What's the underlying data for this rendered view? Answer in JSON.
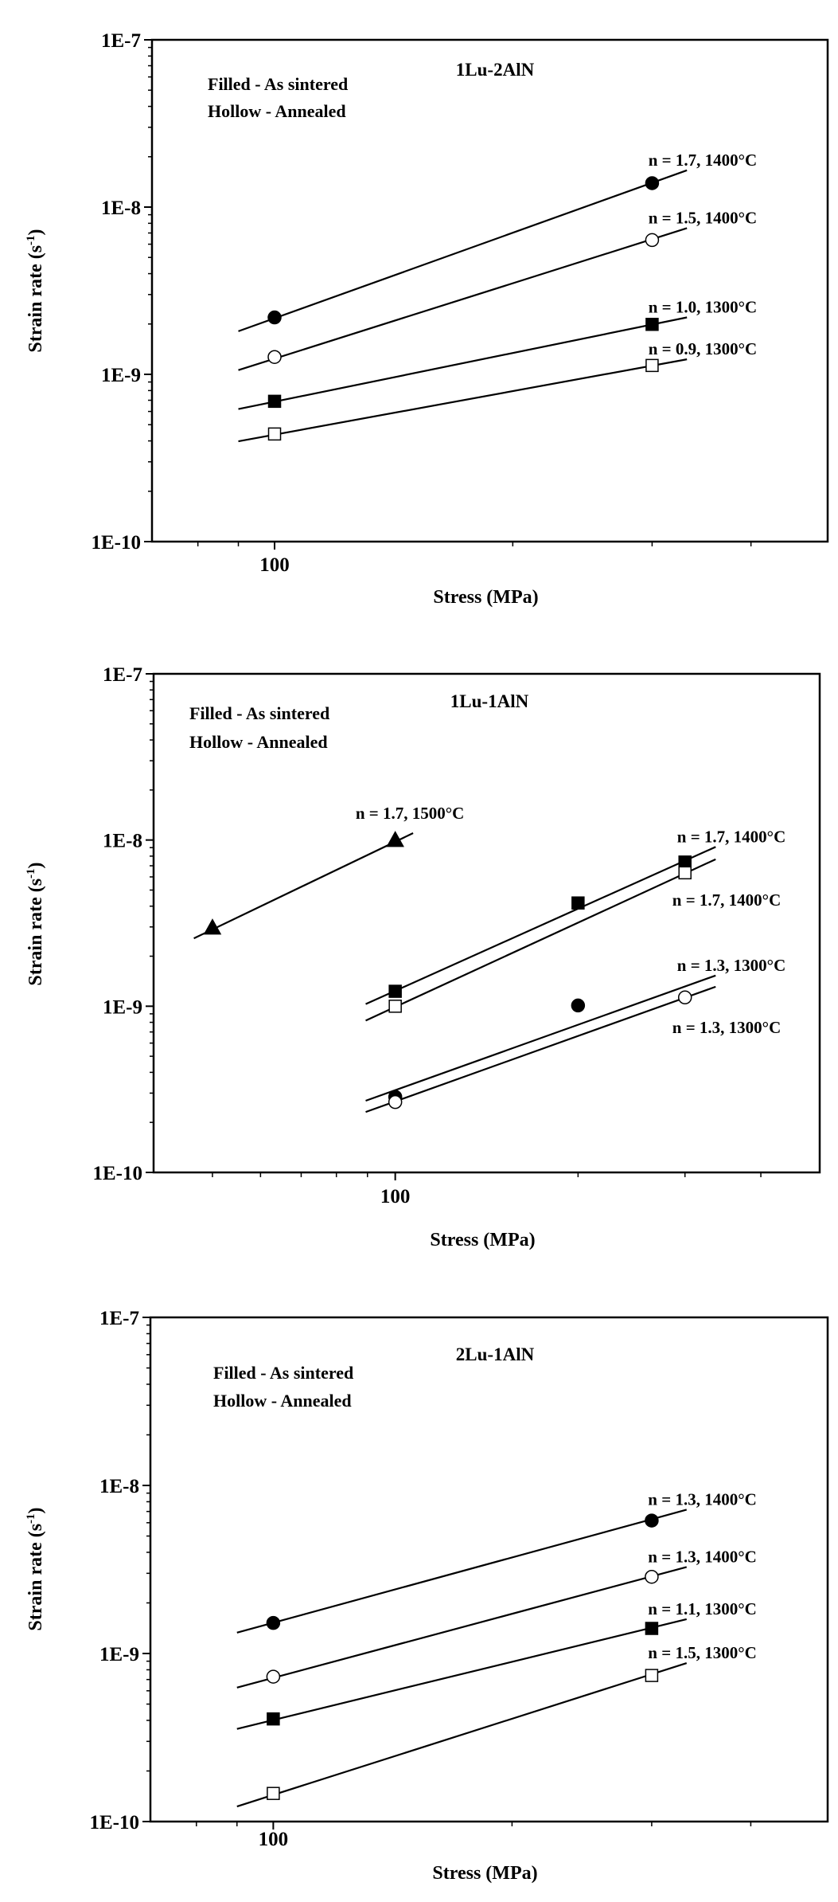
{
  "chart_data": [
    {
      "type": "scatter",
      "title": "1Lu-2AlN",
      "legend_note": [
        "Filled - As sintered",
        "Hollow - Annealed"
      ],
      "xlabel": "Stress (MPa)",
      "ylabel": "Strain rate (s",
      "ylabel_sup": "-1",
      "ylabel_end": ")",
      "xscale": "log",
      "yscale": "log",
      "xlim": [
        70,
        500
      ],
      "ylim": [
        1e-10,
        1e-07
      ],
      "xticks": [
        {
          "v": 100,
          "label": "100"
        }
      ],
      "xminor": [
        80,
        90,
        200,
        300,
        400
      ],
      "yticks": [
        {
          "v": 1e-07,
          "label": "1E-7"
        },
        {
          "v": 1e-08,
          "label": "1E-8"
        },
        {
          "v": 1e-09,
          "label": "1E-9"
        },
        {
          "v": 1e-10,
          "label": "1E-10"
        }
      ],
      "grid": false,
      "series": [
        {
          "marker": "filled-circle",
          "points": [
            [
              100,
              2.19e-09
            ],
            [
              300,
              1.39e-08
            ]
          ],
          "fit": [
            [
              90,
              1.81e-09
            ],
            [
              332,
              1.66e-08
            ]
          ],
          "label": "n = 1.7, 1400°C",
          "label_side": "above"
        },
        {
          "marker": "hollow-circle",
          "points": [
            [
              100,
              1.27e-09
            ],
            [
              300,
              6.35e-09
            ]
          ],
          "fit": [
            [
              90,
              1.06e-09
            ],
            [
              332,
              7.48e-09
            ]
          ],
          "label": "n = 1.5, 1400°C",
          "label_side": "above"
        },
        {
          "marker": "filled-square",
          "points": [
            [
              100,
              6.9e-10
            ],
            [
              300,
              1.99e-09
            ]
          ],
          "fit": [
            [
              90,
              6.2e-10
            ],
            [
              332,
              2.19e-09
            ]
          ],
          "label": "n = 1.0, 1300°C",
          "label_side": "above"
        },
        {
          "marker": "hollow-square",
          "points": [
            [
              100,
              4.4e-10
            ],
            [
              300,
              1.13e-09
            ]
          ],
          "fit": [
            [
              90,
              3.98e-10
            ],
            [
              332,
              1.23e-09
            ]
          ],
          "label": "n = 0.9, 1300°C",
          "label_side": "above"
        }
      ]
    },
    {
      "type": "scatter",
      "title": "1Lu-1AlN",
      "legend_note": [
        "Filled - As sintered",
        "Hollow - Annealed"
      ],
      "xlabel": "Stress (MPa)",
      "ylabel": "Strain rate (s",
      "ylabel_sup": "-1",
      "ylabel_end": ")",
      "xscale": "log",
      "yscale": "log",
      "xlim": [
        40,
        500
      ],
      "ylim": [
        1e-10,
        1e-07
      ],
      "xticks": [
        {
          "v": 100,
          "label": "100"
        }
      ],
      "xminor": [
        50,
        60,
        70,
        80,
        90,
        200,
        300,
        400
      ],
      "yticks": [
        {
          "v": 1e-07,
          "label": "1E-7"
        },
        {
          "v": 1e-08,
          "label": "1E-8"
        },
        {
          "v": 1e-09,
          "label": "1E-9"
        },
        {
          "v": 1e-10,
          "label": "1E-10"
        }
      ],
      "grid": false,
      "series": [
        {
          "marker": "filled-triangle",
          "points": [
            [
              50,
              2.97e-09
            ],
            [
              100,
              1e-08
            ]
          ],
          "fit": [
            [
              46.6,
              2.56e-09
            ],
            [
              107,
              1.1e-08
            ]
          ],
          "label": "n = 1.7, 1500°C",
          "label_side": "above-center"
        },
        {
          "marker": "filled-square",
          "points": [
            [
              100,
              1.23e-09
            ],
            [
              200,
              4.18e-09
            ],
            [
              300,
              7.37e-09
            ]
          ],
          "fit": [
            [
              89.4,
              1.03e-09
            ],
            [
              337,
              9.09e-09
            ]
          ],
          "label": "n = 1.7, 1400°C",
          "label_side": "above"
        },
        {
          "marker": "hollow-square",
          "points": [
            [
              100,
              1e-09
            ],
            [
              300,
              6.35e-09
            ]
          ],
          "fit": [
            [
              89.4,
              8.2e-10
            ],
            [
              337,
              7.66e-09
            ]
          ],
          "label": "n = 1.7, 1400°C",
          "label_side": "below"
        },
        {
          "marker": "filled-circle",
          "points": [
            [
              100,
              2.85e-10
            ],
            [
              200,
              1.01e-09
            ]
          ],
          "fit": [
            [
              89.4,
              2.7e-10
            ],
            [
              337,
              1.53e-09
            ]
          ],
          "label": "n = 1.3, 1300°C",
          "label_side": "above"
        },
        {
          "marker": "hollow-circle",
          "points": [
            [
              100,
              2.65e-10
            ],
            [
              300,
              1.13e-09
            ]
          ],
          "fit": [
            [
              89.4,
              2.31e-10
            ],
            [
              337,
              1.31e-09
            ]
          ],
          "label": "n = 1.3, 1300°C",
          "label_side": "below"
        }
      ]
    },
    {
      "type": "scatter",
      "title": "2Lu-1AlN",
      "legend_note": [
        "Filled - As sintered",
        "Hollow - Annealed"
      ],
      "xlabel": "Stress (MPa)",
      "ylabel": "Strain rate (s",
      "ylabel_sup": "-1",
      "ylabel_end": ")",
      "xscale": "log",
      "yscale": "log",
      "xlim": [
        70,
        500
      ],
      "ylim": [
        1e-10,
        1e-07
      ],
      "xticks": [
        {
          "v": 100,
          "label": "100"
        }
      ],
      "xminor": [
        80,
        90,
        200,
        300,
        400
      ],
      "yticks": [
        {
          "v": 1e-07,
          "label": "1E-7"
        },
        {
          "v": 1e-08,
          "label": "1E-8"
        },
        {
          "v": 1e-09,
          "label": "1E-9"
        },
        {
          "v": 1e-10,
          "label": "1E-10"
        }
      ],
      "grid": false,
      "series": [
        {
          "marker": "filled-circle",
          "points": [
            [
              100,
              1.52e-09
            ],
            [
              300,
              6.18e-09
            ]
          ],
          "fit": [
            [
              90,
              1.33e-09
            ],
            [
              332,
              7.17e-09
            ]
          ],
          "label": "n = 1.3, 1400°C",
          "label_side": "above"
        },
        {
          "marker": "hollow-circle",
          "points": [
            [
              100,
              7.28e-10
            ],
            [
              300,
              2.86e-09
            ]
          ],
          "fit": [
            [
              90,
              6.27e-10
            ],
            [
              332,
              3.27e-09
            ]
          ],
          "label": "n = 1.3, 1400°C",
          "label_side": "above"
        },
        {
          "marker": "filled-square",
          "points": [
            [
              100,
              4.08e-10
            ],
            [
              300,
              1.41e-09
            ]
          ],
          "fit": [
            [
              90,
              3.56e-10
            ],
            [
              332,
              1.6e-09
            ]
          ],
          "label": "n = 1.1, 1300°C",
          "label_side": "above"
        },
        {
          "marker": "hollow-square",
          "points": [
            [
              100,
              1.47e-10
            ],
            [
              300,
              7.4e-10
            ]
          ],
          "fit": [
            [
              90,
              1.23e-10
            ],
            [
              332,
              8.77e-10
            ]
          ],
          "label": "n = 1.5, 1300°C",
          "label_side": "above"
        }
      ]
    }
  ]
}
